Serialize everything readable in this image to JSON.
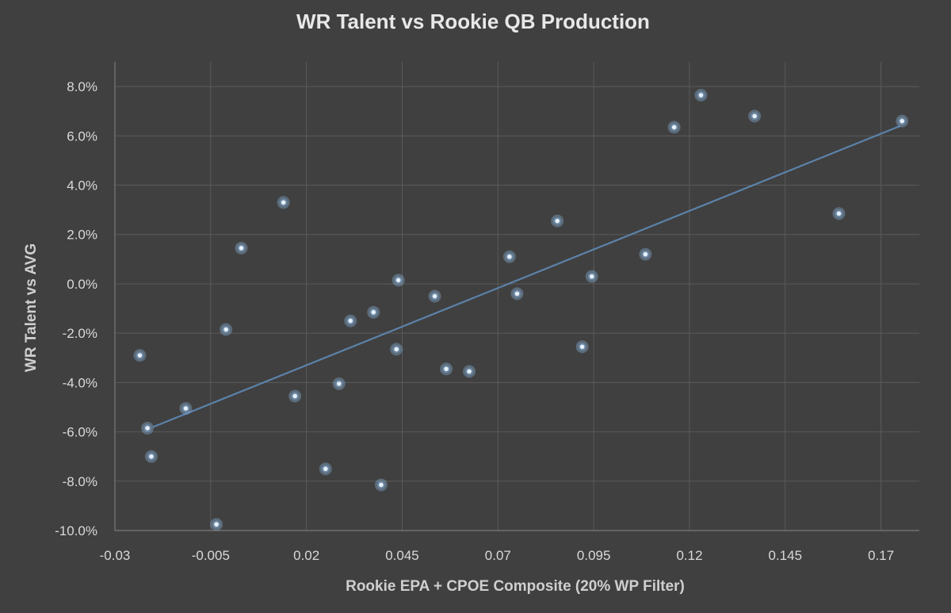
{
  "chart_data": {
    "type": "scatter",
    "title": "WR Talent vs Rookie QB Production",
    "xlabel": "Rookie EPA + CPOE Composite (20% WP Filter)",
    "ylabel": "WR Talent vs AVG",
    "xlim": [
      -0.03,
      0.18
    ],
    "ylim": [
      -0.1,
      0.09
    ],
    "x_ticks": [
      -0.03,
      -0.005,
      0.02,
      0.045,
      0.07,
      0.095,
      0.12,
      0.145,
      0.17
    ],
    "x_tick_labels": [
      "-0.03",
      "-0.005",
      "0.02",
      "0.045",
      "0.07",
      "0.095",
      "0.12",
      "0.145",
      "0.17"
    ],
    "y_ticks": [
      -0.1,
      -0.08,
      -0.06,
      -0.04,
      -0.02,
      0.0,
      0.02,
      0.04,
      0.06,
      0.08
    ],
    "y_tick_labels": [
      "-10.0%",
      "-8.0%",
      "-6.0%",
      "-4.0%",
      "-2.0%",
      "0.0%",
      "2.0%",
      "4.0%",
      "6.0%",
      "8.0%"
    ],
    "grid": true,
    "trendline": {
      "type": "linear",
      "from": [
        -0.02,
        -0.058
      ],
      "to": [
        0.175,
        0.064
      ]
    },
    "points": [
      {
        "x": -0.0235,
        "y": -0.029
      },
      {
        "x": -0.0215,
        "y": -0.0585
      },
      {
        "x": -0.0205,
        "y": -0.07
      },
      {
        "x": -0.0115,
        "y": -0.0505
      },
      {
        "x": -0.0035,
        "y": -0.0975
      },
      {
        "x": -0.001,
        "y": -0.0185
      },
      {
        "x": 0.003,
        "y": 0.0145
      },
      {
        "x": 0.014,
        "y": 0.033
      },
      {
        "x": 0.017,
        "y": -0.0455
      },
      {
        "x": 0.025,
        "y": -0.075
      },
      {
        "x": 0.0285,
        "y": -0.0405
      },
      {
        "x": 0.0315,
        "y": -0.015
      },
      {
        "x": 0.0375,
        "y": -0.0115
      },
      {
        "x": 0.0395,
        "y": -0.0815
      },
      {
        "x": 0.0435,
        "y": -0.0265
      },
      {
        "x": 0.044,
        "y": 0.0015
      },
      {
        "x": 0.0535,
        "y": -0.005
      },
      {
        "x": 0.0565,
        "y": -0.0345
      },
      {
        "x": 0.0625,
        "y": -0.0355
      },
      {
        "x": 0.073,
        "y": 0.011
      },
      {
        "x": 0.075,
        "y": -0.004
      },
      {
        "x": 0.0855,
        "y": 0.0255
      },
      {
        "x": 0.092,
        "y": -0.0255
      },
      {
        "x": 0.0945,
        "y": 0.003
      },
      {
        "x": 0.1085,
        "y": 0.012
      },
      {
        "x": 0.116,
        "y": 0.0635
      },
      {
        "x": 0.123,
        "y": 0.0765
      },
      {
        "x": 0.137,
        "y": 0.068
      },
      {
        "x": 0.159,
        "y": 0.0285
      },
      {
        "x": 0.1755,
        "y": 0.066
      }
    ]
  },
  "colors": {
    "background": "#404040",
    "point": "#e6f1fb",
    "point_glow": "#8fbde8",
    "trendline": "#5b82aa",
    "grid": "#5a5a5a"
  }
}
